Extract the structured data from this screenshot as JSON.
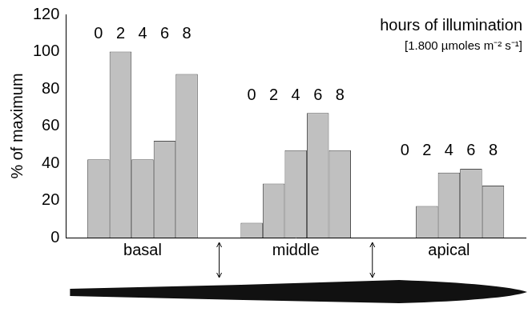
{
  "chart_data": {
    "type": "bar",
    "categories": [
      "basal",
      "middle",
      "apical"
    ],
    "series": [
      {
        "name": "0",
        "color": "#c0c0c0",
        "values": [
          42,
          8,
          0
        ]
      },
      {
        "name": "2",
        "color": "#c0c0c0",
        "values": [
          100,
          29,
          17
        ]
      },
      {
        "name": "4",
        "color": "#c0c0c0",
        "values": [
          42,
          47,
          35
        ]
      },
      {
        "name": "6",
        "color": "#c0c0c0",
        "values": [
          52,
          67,
          37
        ]
      },
      {
        "name": "8",
        "color": "#c0c0c0",
        "values": [
          88,
          47,
          28
        ]
      }
    ],
    "y_label": "% of maximum",
    "annotations": [
      "hours of illumination",
      "[1.800 µmoles m⁻² s⁻¹]"
    ],
    "ylim": [
      0,
      120
    ],
    "yticks": [
      0,
      20,
      40,
      60,
      80,
      100,
      120
    ],
    "grid": false
  }
}
